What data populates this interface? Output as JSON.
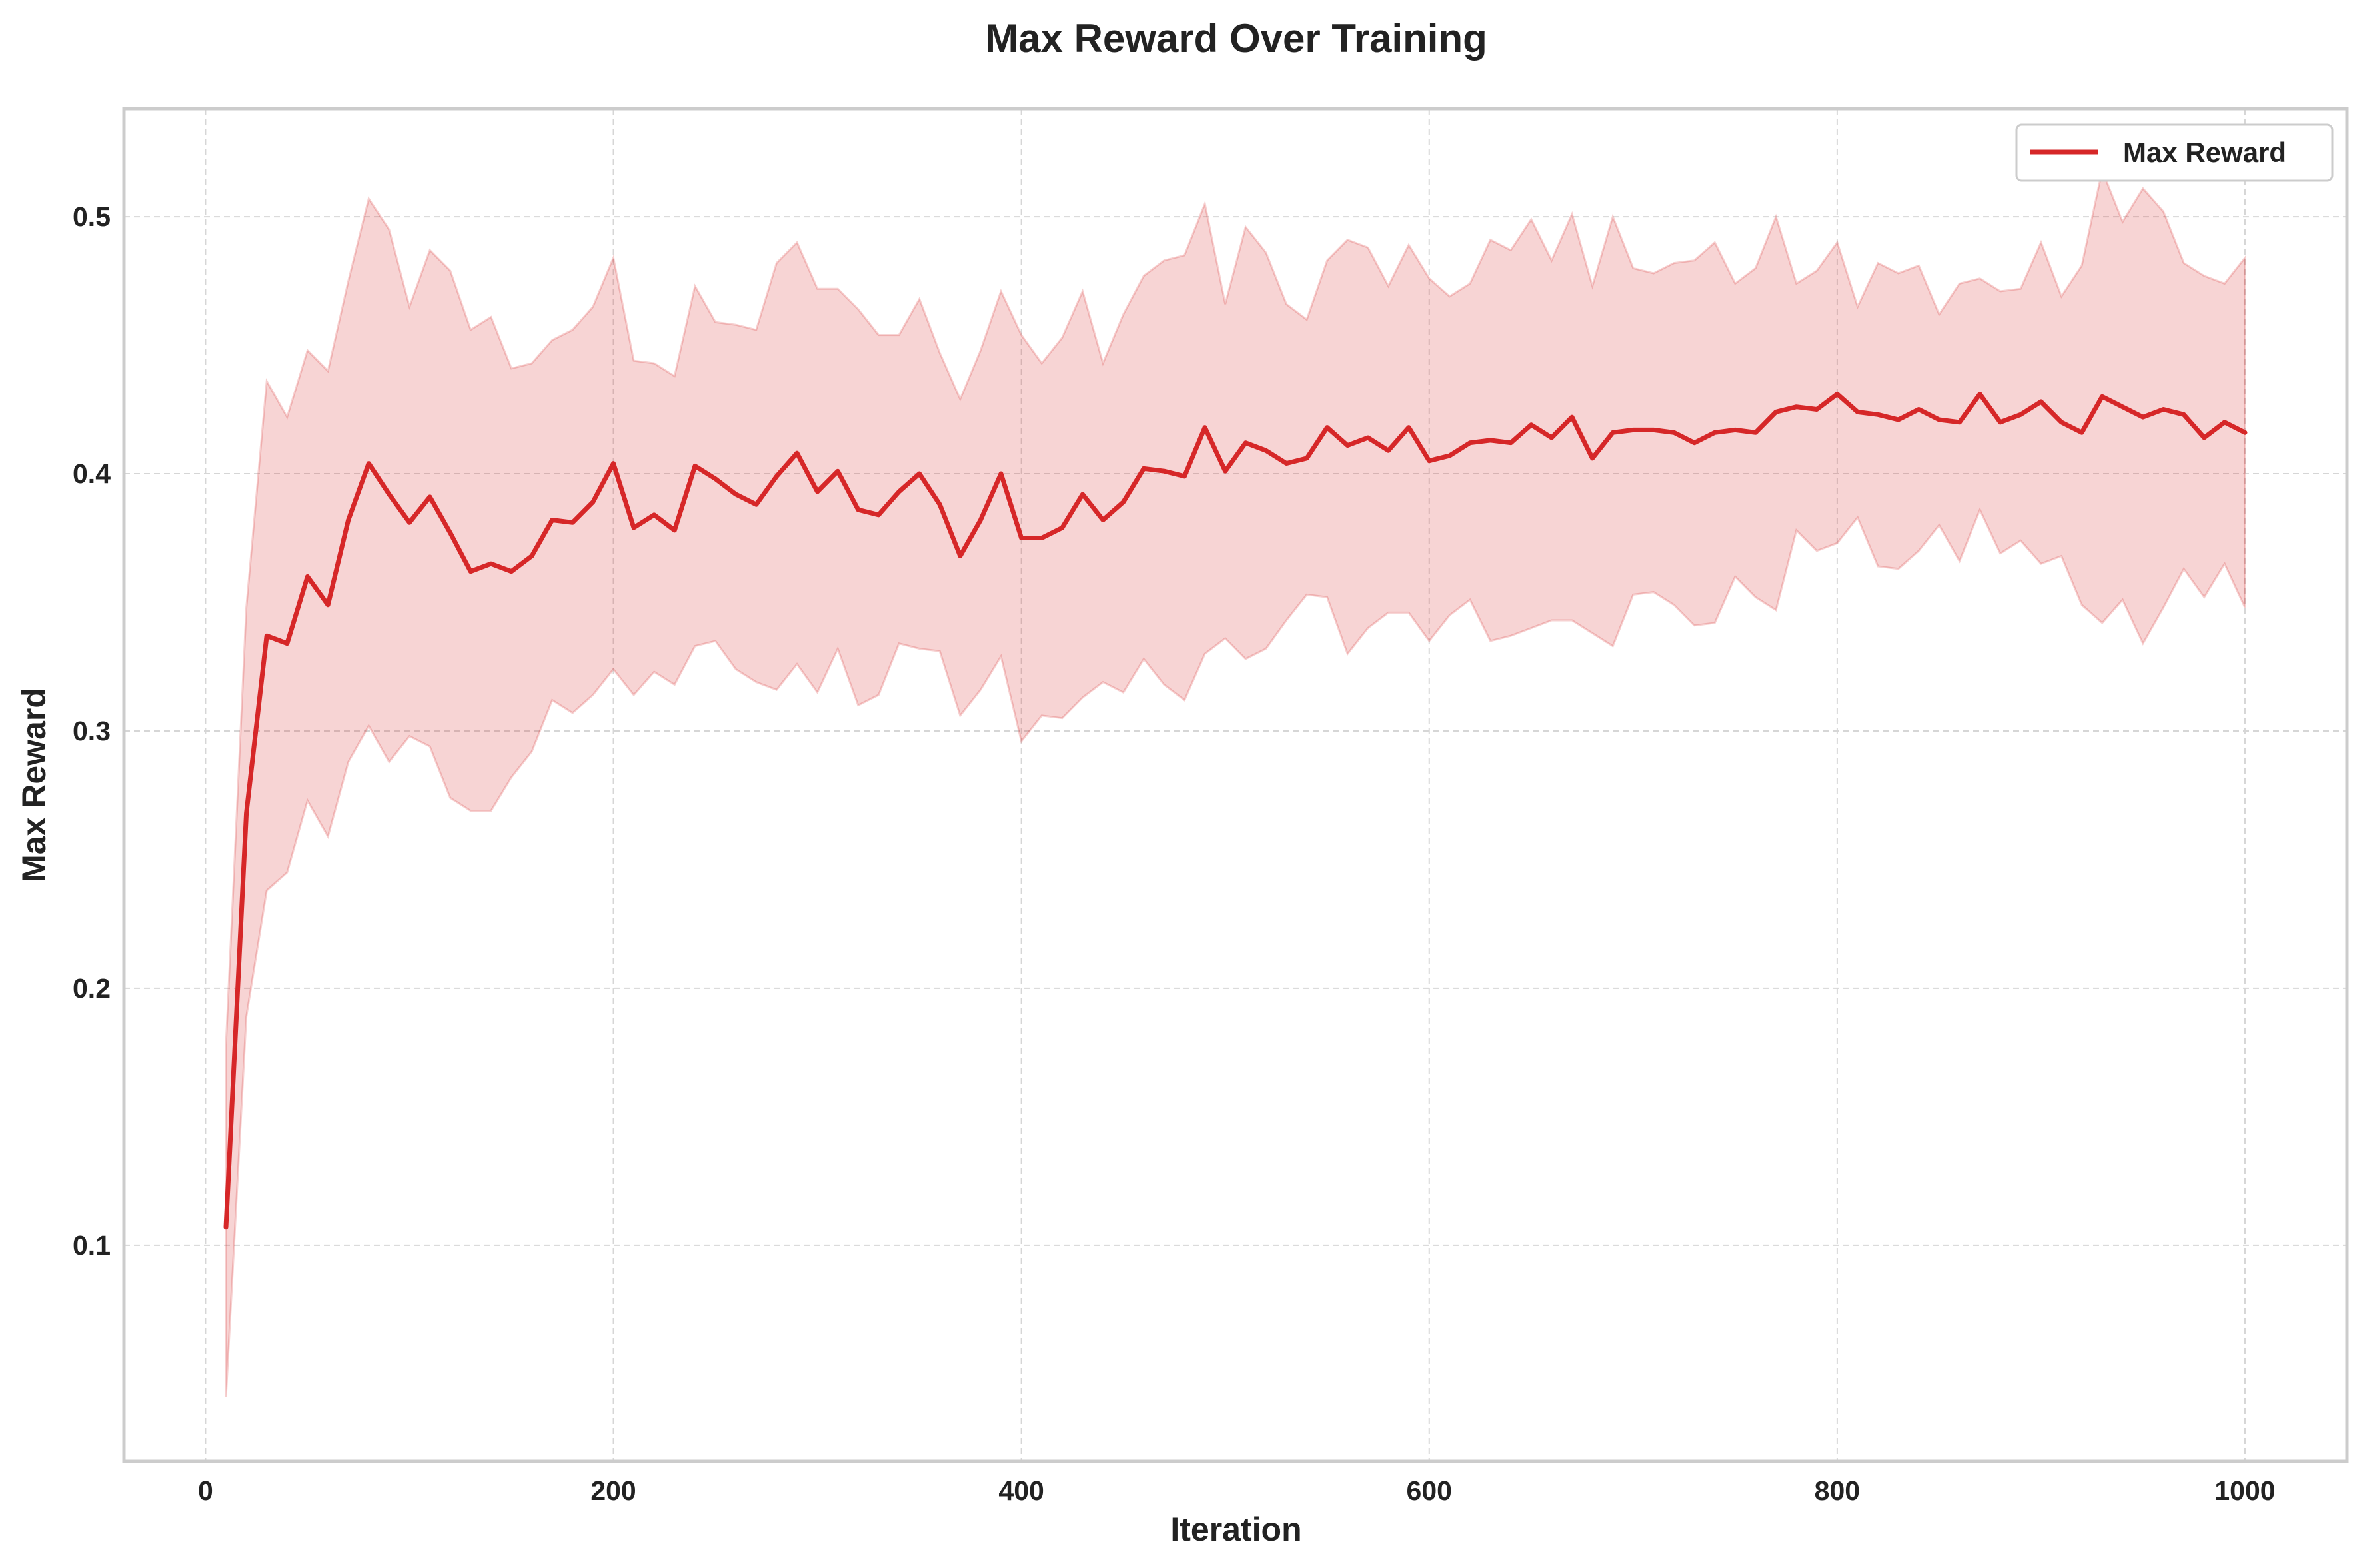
{
  "chart_data": {
    "type": "line",
    "title": "Max Reward Over Training",
    "xlabel": "Iteration",
    "ylabel": "Max Reward",
    "xlim": [
      -40,
      1050
    ],
    "ylim": [
      0.016,
      0.542
    ],
    "xticks": [
      0,
      200,
      400,
      600,
      800,
      1000
    ],
    "yticks": [
      0.1,
      0.2,
      0.3,
      0.4,
      0.5
    ],
    "xtick_labels": [
      "0",
      "200",
      "400",
      "600",
      "800",
      "1000"
    ],
    "ytick_labels": [
      "0.1",
      "0.2",
      "0.3",
      "0.4",
      "0.5"
    ],
    "grid": true,
    "legend_position": "top-right",
    "colors": {
      "line": "#d62728",
      "band": "#d62728"
    },
    "series": [
      {
        "name": "Max Reward",
        "x": [
          10,
          20,
          30,
          40,
          50,
          60,
          70,
          80,
          90,
          100,
          110,
          120,
          130,
          140,
          150,
          160,
          170,
          180,
          190,
          200,
          210,
          220,
          230,
          240,
          250,
          260,
          270,
          280,
          290,
          300,
          310,
          320,
          330,
          340,
          350,
          360,
          370,
          380,
          390,
          400,
          410,
          420,
          430,
          440,
          450,
          460,
          470,
          480,
          490,
          500,
          510,
          520,
          530,
          540,
          550,
          560,
          570,
          580,
          590,
          600,
          610,
          620,
          630,
          640,
          650,
          660,
          670,
          680,
          690,
          700,
          710,
          720,
          730,
          740,
          750,
          760,
          770,
          780,
          790,
          800,
          810,
          820,
          830,
          840,
          850,
          860,
          870,
          880,
          890,
          900,
          910,
          920,
          930,
          940,
          950,
          960,
          970,
          980,
          990,
          1000
        ],
        "y": [
          0.107,
          0.268,
          0.337,
          0.334,
          0.36,
          0.349,
          0.382,
          0.404,
          0.392,
          0.381,
          0.391,
          0.377,
          0.362,
          0.365,
          0.362,
          0.368,
          0.382,
          0.381,
          0.389,
          0.404,
          0.379,
          0.384,
          0.378,
          0.403,
          0.398,
          0.392,
          0.388,
          0.399,
          0.408,
          0.393,
          0.401,
          0.386,
          0.384,
          0.393,
          0.4,
          0.388,
          0.368,
          0.382,
          0.4,
          0.375,
          0.375,
          0.379,
          0.392,
          0.382,
          0.389,
          0.402,
          0.401,
          0.399,
          0.418,
          0.401,
          0.412,
          0.409,
          0.404,
          0.406,
          0.418,
          0.411,
          0.414,
          0.409,
          0.418,
          0.405,
          0.407,
          0.412,
          0.413,
          0.412,
          0.419,
          0.414,
          0.422,
          0.406,
          0.416,
          0.417,
          0.417,
          0.416,
          0.412,
          0.416,
          0.417,
          0.416,
          0.424,
          0.426,
          0.425,
          0.431,
          0.424,
          0.423,
          0.421,
          0.425,
          0.421,
          0.42,
          0.431,
          0.42,
          0.423,
          0.428,
          0.42,
          0.416,
          0.43,
          0.426,
          0.422,
          0.425,
          0.423,
          0.414,
          0.42,
          0.416
        ],
        "lower": [
          0.041,
          0.189,
          0.238,
          0.245,
          0.273,
          0.259,
          0.288,
          0.302,
          0.288,
          0.298,
          0.294,
          0.274,
          0.269,
          0.269,
          0.282,
          0.292,
          0.312,
          0.307,
          0.314,
          0.324,
          0.314,
          0.323,
          0.318,
          0.333,
          0.335,
          0.324,
          0.319,
          0.316,
          0.326,
          0.315,
          0.332,
          0.31,
          0.314,
          0.334,
          0.332,
          0.331,
          0.306,
          0.316,
          0.329,
          0.296,
          0.306,
          0.305,
          0.313,
          0.319,
          0.315,
          0.328,
          0.318,
          0.312,
          0.33,
          0.336,
          0.328,
          0.332,
          0.343,
          0.353,
          0.352,
          0.33,
          0.34,
          0.346,
          0.346,
          0.335,
          0.345,
          0.351,
          0.335,
          0.337,
          0.34,
          0.343,
          0.343,
          0.338,
          0.333,
          0.353,
          0.354,
          0.349,
          0.341,
          0.342,
          0.36,
          0.352,
          0.347,
          0.378,
          0.37,
          0.373,
          0.383,
          0.364,
          0.363,
          0.37,
          0.38,
          0.366,
          0.386,
          0.369,
          0.374,
          0.365,
          0.368,
          0.349,
          0.342,
          0.351,
          0.334,
          0.348,
          0.363,
          0.352,
          0.365,
          0.348
        ],
        "upper": [
          0.178,
          0.348,
          0.436,
          0.422,
          0.448,
          0.44,
          0.475,
          0.507,
          0.495,
          0.465,
          0.487,
          0.479,
          0.456,
          0.461,
          0.441,
          0.443,
          0.452,
          0.456,
          0.465,
          0.484,
          0.444,
          0.443,
          0.438,
          0.473,
          0.459,
          0.458,
          0.456,
          0.482,
          0.49,
          0.472,
          0.472,
          0.464,
          0.454,
          0.454,
          0.468,
          0.447,
          0.429,
          0.448,
          0.471,
          0.454,
          0.443,
          0.453,
          0.471,
          0.443,
          0.462,
          0.477,
          0.483,
          0.485,
          0.505,
          0.466,
          0.496,
          0.486,
          0.466,
          0.46,
          0.483,
          0.491,
          0.488,
          0.473,
          0.489,
          0.476,
          0.469,
          0.474,
          0.491,
          0.487,
          0.499,
          0.483,
          0.501,
          0.473,
          0.5,
          0.48,
          0.478,
          0.482,
          0.483,
          0.49,
          0.474,
          0.48,
          0.5,
          0.474,
          0.479,
          0.49,
          0.465,
          0.482,
          0.478,
          0.481,
          0.462,
          0.474,
          0.476,
          0.471,
          0.472,
          0.49,
          0.469,
          0.481,
          0.518,
          0.498,
          0.511,
          0.502,
          0.482,
          0.477,
          0.474,
          0.484
        ]
      }
    ]
  }
}
